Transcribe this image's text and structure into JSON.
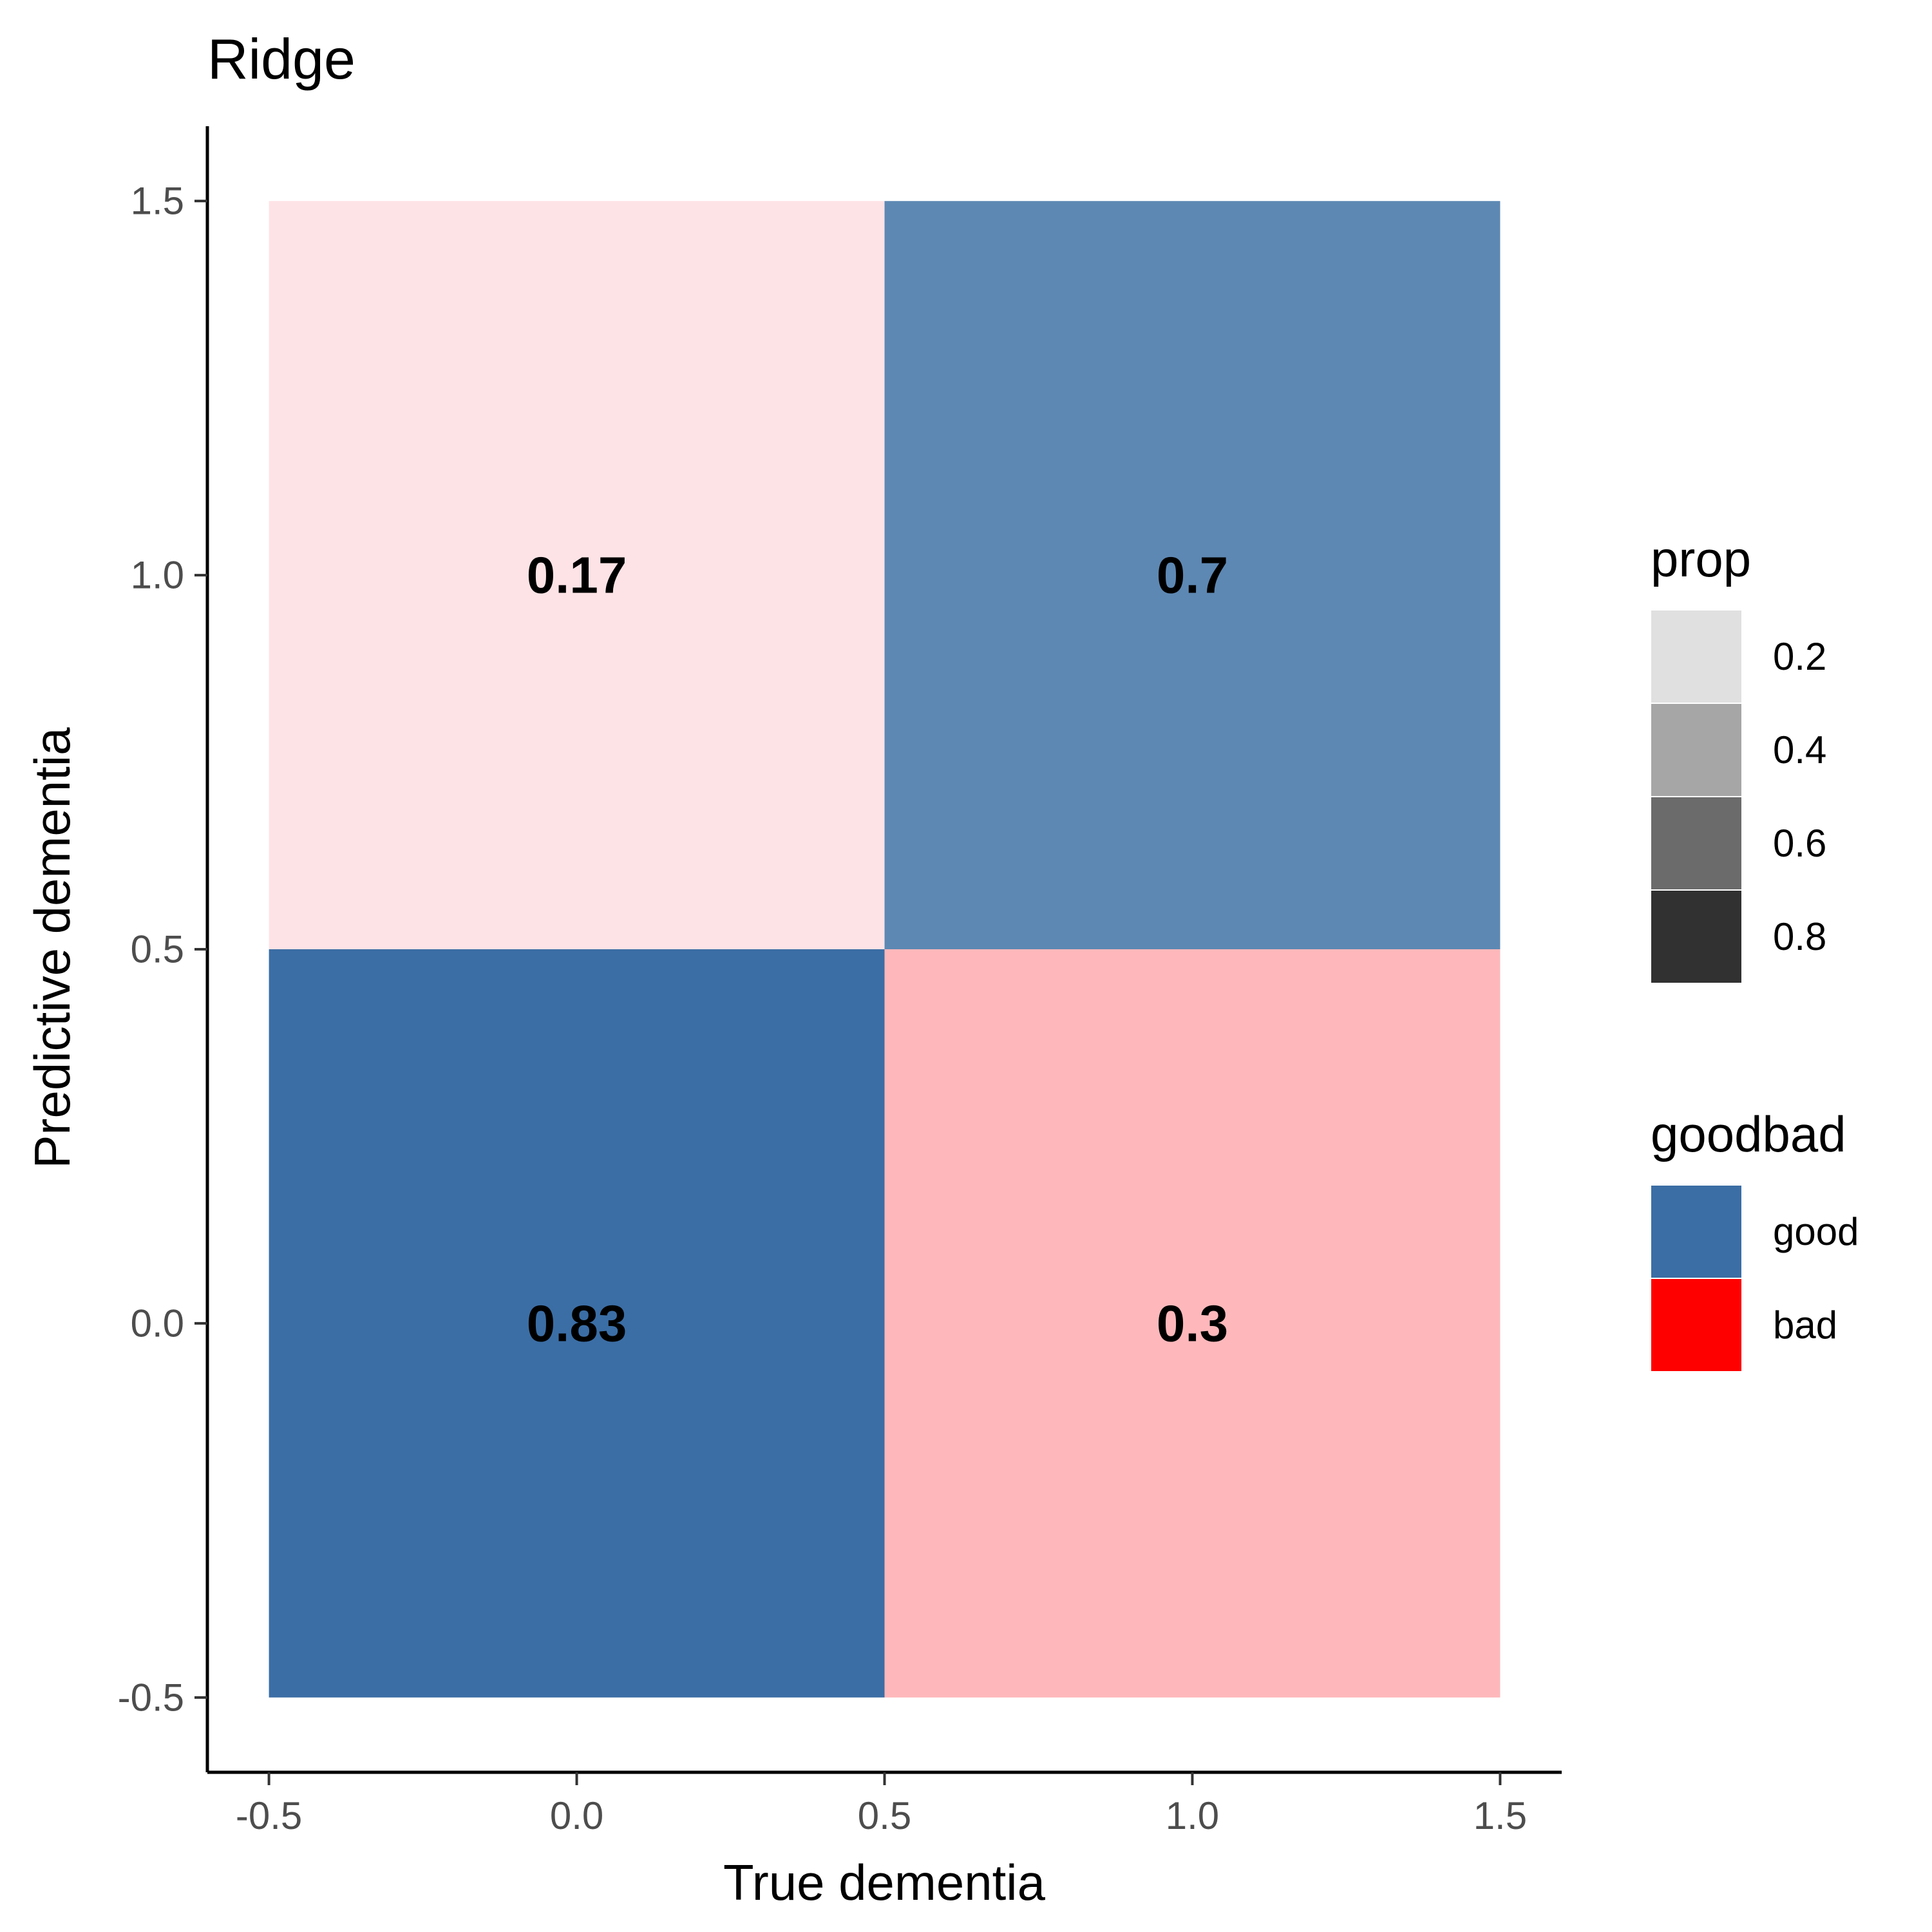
{
  "chart_data": {
    "type": "heatmap",
    "title": "Ridge",
    "xlabel": "True dementia",
    "ylabel": "Predictive dementia",
    "xlim": [
      -0.6,
      1.6
    ],
    "ylim": [
      -0.6,
      1.6
    ],
    "x_ticks": [
      "-0.5",
      "0.0",
      "0.5",
      "1.0",
      "1.5"
    ],
    "y_ticks": [
      "-0.5",
      "0.0",
      "0.5",
      "1.0",
      "1.5"
    ],
    "x_tick_values": [
      -0.5,
      0,
      0.5,
      1,
      1.5
    ],
    "y_tick_values": [
      -0.5,
      0,
      0.5,
      1,
      1.5
    ],
    "grid": false,
    "cells": [
      {
        "x": 0,
        "y": 1,
        "label": "0.17",
        "value": 0.17,
        "goodbad": "bad",
        "color": "#fee3e6"
      },
      {
        "x": 1,
        "y": 1,
        "label": "0.7",
        "value": 0.7,
        "goodbad": "good",
        "color": "#5d88b3"
      },
      {
        "x": 0,
        "y": 0,
        "label": "0.83",
        "value": 0.83,
        "goodbad": "good",
        "color": "#3b6ea5"
      },
      {
        "x": 1,
        "y": 0,
        "label": "0.3",
        "value": 0.3,
        "goodbad": "bad",
        "color": "#feb8bb"
      }
    ],
    "legend_placement": "right",
    "legends": [
      {
        "title": "prop",
        "entries": [
          {
            "label": "0.2",
            "color": "#e0e0e0"
          },
          {
            "label": "0.4",
            "color": "#a6a6a6"
          },
          {
            "label": "0.6",
            "color": "#6b6b6b"
          },
          {
            "label": "0.8",
            "color": "#313131"
          }
        ]
      },
      {
        "title": "goodbad",
        "entries": [
          {
            "label": "good",
            "color": "#3b6ea5"
          },
          {
            "label": "bad",
            "color": "#ff0000"
          }
        ]
      }
    ]
  }
}
